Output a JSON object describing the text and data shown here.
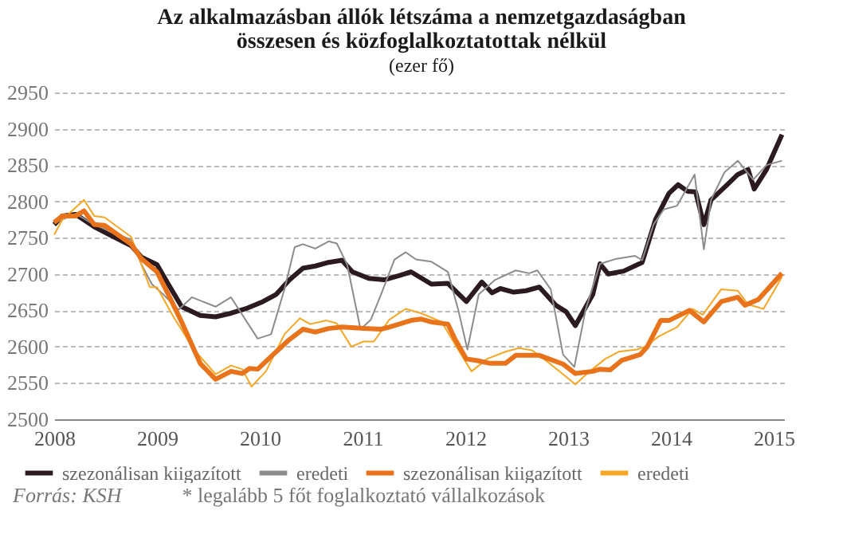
{
  "chart_data": {
    "type": "line",
    "title": "Az alkalmazásban állók létszáma a nemzetgazdaságban összesen és közfoglalkoztatottak nélkül",
    "subtitle": "(ezer fő)",
    "annotations": [
      "Forrás: KSH",
      "* legalább 5 főt foglalkoztató vállalkozások"
    ],
    "xlim": [
      2008,
      2015.1
    ],
    "xticks": [
      2008,
      2009,
      2010,
      2011,
      2012,
      2013,
      2014,
      2015
    ],
    "ylim": [
      2500,
      2950
    ],
    "yticks": [
      2500,
      2550,
      2600,
      2650,
      2700,
      2750,
      2800,
      2850,
      2900,
      2950
    ],
    "grid": "y",
    "legend": "bottom",
    "line_style": "solid",
    "marker": "none",
    "series": [
      {
        "name": "szezonálisan kiigazított",
        "color": "#2b1a20",
        "x": [
          2008,
          2008.08,
          2008.21,
          2008.39,
          2008.54,
          2008.75,
          2008.85,
          2009.0,
          2009.11,
          2009.24,
          2009.42,
          2009.57,
          2009.72,
          2009.88,
          2010.03,
          2010.16,
          2010.29,
          2010.42,
          2010.54,
          2010.67,
          2010.8,
          2010.9,
          2011.06,
          2011.21,
          2011.36,
          2011.47,
          2011.67,
          2011.83,
          2012.01,
          2012.16,
          2012.26,
          2012.34,
          2012.47,
          2012.59,
          2012.72,
          2012.88,
          2012.98,
          2013.07,
          2013.24,
          2013.31,
          2013.39,
          2013.54,
          2013.72,
          2013.85,
          2013.98,
          2014.07,
          2014.16,
          2014.24,
          2014.32,
          2014.39,
          2014.54,
          2014.65,
          2014.75,
          2014.81,
          2014.93,
          2015.08
        ],
        "values": [
          2768,
          2780,
          2782,
          2765,
          2754,
          2739,
          2723,
          2713,
          2686,
          2655,
          2643,
          2641,
          2646,
          2653,
          2662,
          2672,
          2692,
          2708,
          2711,
          2716,
          2719,
          2703,
          2694,
          2692,
          2698,
          2703,
          2686,
          2687,
          2662,
          2689,
          2674,
          2680,
          2675,
          2677,
          2682,
          2657,
          2648,
          2629,
          2672,
          2714,
          2700,
          2704,
          2716,
          2775,
          2811,
          2823,
          2814,
          2813,
          2768,
          2802,
          2822,
          2837,
          2844,
          2817,
          2844,
          2892
        ]
      },
      {
        "name": "eredeti",
        "color": "#8c8c8c",
        "x": [
          2008,
          2008.21,
          2008.39,
          2008.75,
          2008.85,
          2008.95,
          2009.06,
          2009.21,
          2009.34,
          2009.57,
          2009.72,
          2009.98,
          2010.11,
          2010.24,
          2010.34,
          2010.42,
          2010.54,
          2010.67,
          2010.75,
          2010.85,
          2010.98,
          2011.08,
          2011.18,
          2011.31,
          2011.42,
          2011.52,
          2011.67,
          2011.83,
          2011.93,
          2012.02,
          2012.13,
          2012.29,
          2012.49,
          2012.62,
          2012.7,
          2012.83,
          2012.95,
          2013.06,
          2013.17,
          2013.31,
          2013.47,
          2013.65,
          2013.72,
          2013.83,
          2013.93,
          2014.06,
          2014.23,
          2014.32,
          2014.39,
          2014.52,
          2014.65,
          2014.8,
          2014.93,
          2015.08
        ],
        "values": [
          2770,
          2783,
          2768,
          2747,
          2713,
          2686,
          2672,
          2651,
          2668,
          2655,
          2668,
          2611,
          2617,
          2679,
          2737,
          2741,
          2735,
          2745,
          2742,
          2713,
          2624,
          2637,
          2672,
          2720,
          2730,
          2720,
          2717,
          2703,
          2651,
          2596,
          2672,
          2692,
          2705,
          2701,
          2705,
          2679,
          2589,
          2572,
          2651,
          2714,
          2721,
          2725,
          2719,
          2768,
          2789,
          2794,
          2837,
          2734,
          2802,
          2840,
          2856,
          2830,
          2850,
          2856
        ]
      },
      {
        "name": "szezonálisan kiigazított",
        "color": "#e8731a",
        "x": [
          2008,
          2008.08,
          2008.21,
          2008.29,
          2008.39,
          2008.49,
          2008.75,
          2008.85,
          2009.0,
          2009.11,
          2009.24,
          2009.42,
          2009.57,
          2009.72,
          2009.83,
          2009.9,
          2009.98,
          2010.13,
          2010.29,
          2010.42,
          2010.54,
          2010.67,
          2010.8,
          2011.01,
          2011.18,
          2011.26,
          2011.47,
          2011.57,
          2011.67,
          2011.83,
          2011.9,
          2012.01,
          2012.11,
          2012.24,
          2012.39,
          2012.49,
          2012.72,
          2012.95,
          2013.07,
          2013.24,
          2013.31,
          2013.41,
          2013.52,
          2013.7,
          2013.77,
          2013.9,
          2013.98,
          2014.18,
          2014.32,
          2014.49,
          2014.65,
          2014.72,
          2014.85,
          2015.08
        ],
        "values": [
          2771,
          2780,
          2780,
          2787,
          2768,
          2767,
          2741,
          2721,
          2703,
          2672,
          2634,
          2577,
          2555,
          2566,
          2563,
          2570,
          2569,
          2589,
          2610,
          2624,
          2620,
          2625,
          2627,
          2625,
          2624,
          2627,
          2636,
          2638,
          2634,
          2631,
          2610,
          2583,
          2581,
          2577,
          2577,
          2588,
          2588,
          2576,
          2563,
          2566,
          2569,
          2568,
          2581,
          2589,
          2600,
          2636,
          2636,
          2650,
          2634,
          2662,
          2668,
          2657,
          2665,
          2701
        ]
      },
      {
        "name": "eredeti",
        "color": "#f5a623",
        "x": [
          2008,
          2008.08,
          2008.29,
          2008.39,
          2008.49,
          2008.75,
          2008.93,
          2009.0,
          2009.16,
          2009.36,
          2009.57,
          2009.72,
          2009.83,
          2009.92,
          2010.06,
          2010.24,
          2010.39,
          2010.49,
          2010.65,
          2010.75,
          2010.89,
          2011.01,
          2011.11,
          2011.26,
          2011.42,
          2011.57,
          2011.77,
          2011.9,
          2012.06,
          2012.21,
          2012.39,
          2012.52,
          2012.65,
          2012.8,
          2012.95,
          2013.07,
          2013.21,
          2013.36,
          2013.49,
          2013.67,
          2013.75,
          2013.88,
          2014.06,
          2014.21,
          2014.31,
          2014.49,
          2014.65,
          2014.75,
          2014.9,
          2015.08
        ],
        "values": [
          2754,
          2775,
          2802,
          2780,
          2778,
          2751,
          2682,
          2682,
          2641,
          2596,
          2562,
          2574,
          2569,
          2545,
          2566,
          2617,
          2639,
          2631,
          2636,
          2632,
          2600,
          2607,
          2607,
          2637,
          2652,
          2646,
          2634,
          2603,
          2566,
          2583,
          2593,
          2598,
          2595,
          2579,
          2562,
          2548,
          2566,
          2583,
          2593,
          2596,
          2600,
          2614,
          2627,
          2652,
          2644,
          2679,
          2677,
          2658,
          2652,
          2696
        ]
      }
    ]
  }
}
